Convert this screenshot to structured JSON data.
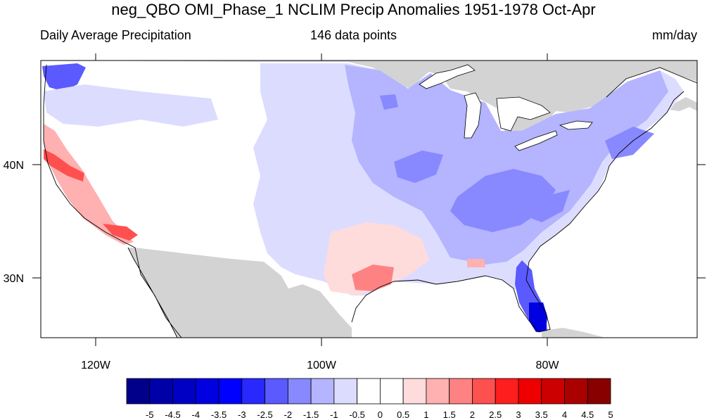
{
  "title": "neg_QBO OMI_Phase_1 NCLIM Precip Anomalies 1951-1978 Oct-Apr",
  "left_string": "Daily Average Precipitation",
  "center_string": "146 data points",
  "right_string": "mm/day",
  "map": {
    "lon_ticks": [
      {
        "label": "120W",
        "lon": -120
      },
      {
        "label": "100W",
        "lon": -100
      },
      {
        "label": "80W",
        "lon": -80
      }
    ],
    "lat_ticks": [
      {
        "label": "40N",
        "lat": 40
      },
      {
        "label": "30N",
        "lat": 30
      }
    ],
    "colors": {
      "ocean": "#ffffff",
      "land_mask": "#d3d3d3",
      "coastline": "#000000"
    }
  },
  "colorbar": {
    "labels": [
      "-5",
      "-4.5",
      "-4",
      "-3.5",
      "-3",
      "-2.5",
      "-2",
      "-1.5",
      "-1",
      "-0.5",
      "0",
      "0.5",
      "1",
      "1.5",
      "2",
      "2.5",
      "3",
      "3.5",
      "4",
      "4.5",
      "5"
    ],
    "colors": [
      "#00008b",
      "#0000a8",
      "#0000c4",
      "#0000e0",
      "#0000ff",
      "#2828ff",
      "#5a5aff",
      "#8888ff",
      "#b4b4ff",
      "#dcdcff",
      "#ffffff",
      "#ffffff",
      "#ffdcdc",
      "#ffb0b0",
      "#ff8282",
      "#ff5050",
      "#ff1e1e",
      "#ee0000",
      "#cc0000",
      "#aa0000",
      "#880000"
    ]
  }
}
